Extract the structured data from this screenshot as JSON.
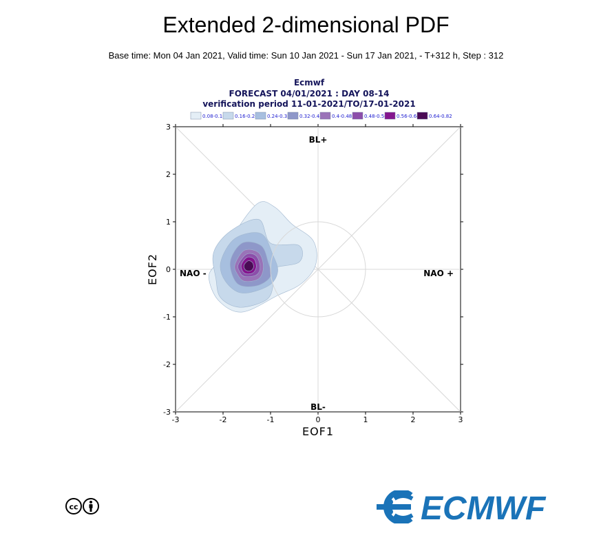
{
  "title": "Extended 2-dimensional PDF",
  "subtitle": "Base time: Mon 04 Jan 2021, Valid time: Sun 10 Jan 2021 - Sun 17 Jan 2021, - T+312 h, Step : 312",
  "plot_header": {
    "line1": "Ecmwf",
    "line2": "FORECAST 04/01/2021 : DAY 08-14",
    "line3": "verification period 11-01-2021/TO/17-01-2021"
  },
  "logo": {
    "text": "ECMWF",
    "color": "#1a73b8"
  },
  "license_icons": [
    "creative-commons-icon",
    "attribution-person-icon"
  ],
  "chart_data": {
    "type": "contour",
    "xlabel": "EOF1",
    "ylabel": "EOF2",
    "xlim": [
      -3,
      3
    ],
    "ylim": [
      -3,
      3
    ],
    "x_ticks": [
      -3,
      -2,
      -1,
      0,
      1,
      2,
      3
    ],
    "y_ticks": [
      -3,
      -2,
      -1,
      0,
      1,
      2,
      3
    ],
    "regime_labels": {
      "top": "BL+",
      "bottom": "BL-",
      "left": "NAO -",
      "right": "NAO +"
    },
    "reference_circle_radius": 1,
    "legend": [
      {
        "label": "0.08-0.16",
        "color": "#e4eef6"
      },
      {
        "label": "0.16-0.24",
        "color": "#c7d9eb"
      },
      {
        "label": "0.24-0.32",
        "color": "#a7bfdf"
      },
      {
        "label": "0.32-0.4",
        "color": "#8e97c9"
      },
      {
        "label": "0.4-0.48",
        "color": "#9a73b8"
      },
      {
        "label": "0.48-0.56",
        "color": "#8c4eaa"
      },
      {
        "label": "0.56-0.64",
        "color": "#85168e"
      },
      {
        "label": "0.64-0.82",
        "color": "#4a0a55"
      }
    ],
    "contours": [
      {
        "level": 0,
        "points": [
          [
            -1.95,
            0.35
          ],
          [
            -1.7,
            0.85
          ],
          [
            -1.25,
            1.4
          ],
          [
            -0.9,
            1.3
          ],
          [
            -0.55,
            0.95
          ],
          [
            -0.1,
            0.6
          ],
          [
            -0.05,
            0.1
          ],
          [
            -0.35,
            -0.3
          ],
          [
            -0.85,
            -0.55
          ],
          [
            -1.6,
            -0.9
          ],
          [
            -2.1,
            -0.65
          ],
          [
            -2.3,
            -0.15
          ],
          [
            -2.1,
            0.15
          ]
        ]
      },
      {
        "level": 1,
        "points": [
          [
            -2.2,
            0.35
          ],
          [
            -1.85,
            0.8
          ],
          [
            -1.25,
            1.05
          ],
          [
            -1.0,
            0.55
          ],
          [
            -0.4,
            0.5
          ],
          [
            -0.4,
            0.15
          ],
          [
            -1.0,
            0.0
          ],
          [
            -0.95,
            -0.35
          ],
          [
            -1.1,
            -0.65
          ],
          [
            -1.65,
            -0.8
          ],
          [
            -2.05,
            -0.6
          ],
          [
            -2.15,
            -0.2
          ]
        ]
      },
      {
        "level": 2,
        "points": [
          [
            -2.05,
            0.15
          ],
          [
            -1.75,
            0.65
          ],
          [
            -1.2,
            0.75
          ],
          [
            -0.95,
            0.3
          ],
          [
            -0.85,
            -0.05
          ],
          [
            -1.05,
            -0.35
          ],
          [
            -1.6,
            -0.5
          ],
          [
            -1.95,
            -0.25
          ]
        ]
      },
      {
        "level": 3,
        "points": [
          [
            -1.85,
            0.15
          ],
          [
            -1.6,
            0.55
          ],
          [
            -1.2,
            0.5
          ],
          [
            -1.05,
            0.15
          ],
          [
            -1.0,
            -0.15
          ],
          [
            -1.3,
            -0.35
          ],
          [
            -1.7,
            -0.3
          ]
        ]
      },
      {
        "level": 4,
        "points": [
          [
            -1.75,
            0.1
          ],
          [
            -1.55,
            0.4
          ],
          [
            -1.25,
            0.35
          ],
          [
            -1.15,
            0.05
          ],
          [
            -1.25,
            -0.2
          ],
          [
            -1.55,
            -0.25
          ],
          [
            -1.7,
            -0.1
          ]
        ]
      },
      {
        "level": 5,
        "points": [
          [
            -1.68,
            0.1
          ],
          [
            -1.5,
            0.32
          ],
          [
            -1.3,
            0.28
          ],
          [
            -1.22,
            0.05
          ],
          [
            -1.3,
            -0.12
          ],
          [
            -1.55,
            -0.15
          ],
          [
            -1.65,
            -0.05
          ]
        ]
      },
      {
        "level": 6,
        "points": [
          [
            -1.62,
            0.08
          ],
          [
            -1.5,
            0.25
          ],
          [
            -1.35,
            0.22
          ],
          [
            -1.3,
            0.05
          ],
          [
            -1.38,
            -0.08
          ],
          [
            -1.55,
            -0.08
          ]
        ]
      },
      {
        "level": 7,
        "points": [
          [
            -1.56,
            0.08
          ],
          [
            -1.47,
            0.18
          ],
          [
            -1.38,
            0.14
          ],
          [
            -1.36,
            0.04
          ],
          [
            -1.42,
            -0.03
          ],
          [
            -1.52,
            -0.02
          ]
        ]
      }
    ]
  }
}
